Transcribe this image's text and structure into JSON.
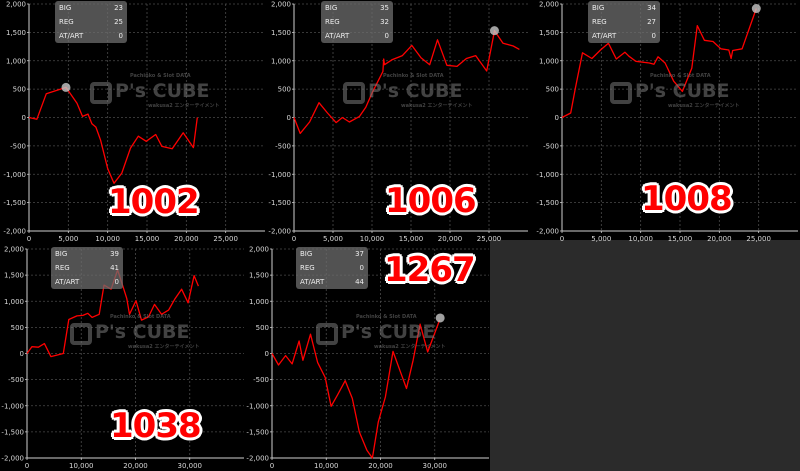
{
  "colors": {
    "line": "#ff0000",
    "grid": "#4a4a4a",
    "axis": "#cfcfcf",
    "tick_text": "#d8d8d8",
    "marker": "#c8c8c8",
    "empty_panel": "#2b2b2b"
  },
  "watermark": {
    "logo": "P's CUBE",
    "tagline": "Pachinko & Slot DATA",
    "sub": "wakusa2 エンターテイメント"
  },
  "chart_data": [
    {
      "type": "line",
      "label": "1002",
      "stats": {
        "big_label": "BIG",
        "big": "23",
        "reg_label": "REG",
        "reg": "25",
        "art_label": "AT/ART",
        "art": "0"
      },
      "xlim": [
        0,
        30000
      ],
      "ylim": [
        -2000,
        2000
      ],
      "xticks": [
        "0",
        "5,000",
        "10,000",
        "15,000",
        "20,000",
        "25,000"
      ],
      "xtick_values": [
        0,
        5000,
        10000,
        15000,
        20000,
        25000
      ],
      "yticks": [
        "2,000",
        "1,500",
        "1,000",
        "500",
        "0",
        "-500",
        "-1,000",
        "-1,500",
        "-2,000"
      ],
      "ytick_values": [
        2000,
        1500,
        1000,
        500,
        0,
        -500,
        -1000,
        -1500,
        -2000
      ],
      "grid": true,
      "marker": [
        4700,
        530
      ],
      "x": [
        0,
        1000,
        2200,
        4700,
        6100,
        6800,
        7500,
        8000,
        8500,
        9100,
        10000,
        10800,
        11800,
        12900,
        13900,
        14900,
        16100,
        16900,
        18200,
        19600,
        20900,
        21400
      ],
      "y": [
        0,
        -30,
        420,
        530,
        250,
        20,
        60,
        -110,
        -170,
        -400,
        -900,
        -1160,
        -980,
        -540,
        -330,
        -420,
        -300,
        -510,
        -550,
        -270,
        -530,
        0
      ]
    },
    {
      "type": "line",
      "label": "1006",
      "stats": {
        "big_label": "BIG",
        "big": "35",
        "reg_label": "REG",
        "reg": "32",
        "art_label": "AT/ART",
        "art": "0"
      },
      "xlim": [
        0,
        30000
      ],
      "ylim": [
        -2000,
        2000
      ],
      "xticks": [
        "0",
        "5,000",
        "10,000",
        "15,000",
        "20,000",
        "25,000"
      ],
      "xtick_values": [
        0,
        5000,
        10000,
        15000,
        20000,
        25000
      ],
      "yticks": [
        "2,000",
        "1,500",
        "1,000",
        "500",
        "0",
        "-500",
        "-1,000",
        "-1,500",
        "-2,000"
      ],
      "ytick_values": [
        2000,
        1500,
        1000,
        500,
        0,
        -500,
        -1000,
        -1500,
        -2000
      ],
      "grid": true,
      "marker": [
        25700,
        1530
      ],
      "x": [
        0,
        800,
        2000,
        3200,
        4300,
        5400,
        6200,
        7100,
        8400,
        9200,
        10100,
        11400,
        11500,
        11600,
        12600,
        13900,
        15100,
        16300,
        17400,
        18400,
        19600,
        20900,
        22100,
        23300,
        24700,
        25700,
        26800,
        28100,
        28900
      ],
      "y": [
        0,
        -280,
        -80,
        260,
        80,
        -90,
        0,
        -80,
        20,
        180,
        460,
        810,
        1030,
        930,
        1020,
        1090,
        1270,
        1050,
        930,
        1370,
        920,
        900,
        1040,
        1090,
        820,
        1530,
        1310,
        1260,
        1200
      ]
    },
    {
      "type": "line",
      "label": "1008",
      "stats": {
        "big_label": "BIG",
        "big": "34",
        "reg_label": "REG",
        "reg": "27",
        "art_label": "AT/ART",
        "art": "0"
      },
      "xlim": [
        0,
        30000
      ],
      "ylim": [
        -2000,
        2000
      ],
      "xticks": [
        "0",
        "5,000",
        "10,000",
        "15,000",
        "20,000",
        "25,000"
      ],
      "xtick_values": [
        0,
        5000,
        10000,
        15000,
        20000,
        25000
      ],
      "yticks": [
        "2,000",
        "1,500",
        "1,000",
        "500",
        "0",
        "-500",
        "-1,000",
        "-1,500",
        "-2,000"
      ],
      "ytick_values": [
        2000,
        1500,
        1000,
        500,
        0,
        -500,
        -1000,
        -1500,
        -2000
      ],
      "grid": true,
      "marker": [
        24700,
        1920
      ],
      "x": [
        0,
        1100,
        1700,
        2600,
        3800,
        4900,
        5900,
        6900,
        8000,
        8500,
        9400,
        11100,
        11700,
        12200,
        13100,
        14200,
        15300,
        16500,
        17200,
        18100,
        19200,
        20200,
        21200,
        21500,
        21700,
        22900,
        24700
      ],
      "y": [
        0,
        80,
        520,
        1140,
        1040,
        1190,
        1310,
        1030,
        1150,
        1080,
        990,
        960,
        940,
        1070,
        960,
        640,
        460,
        870,
        1620,
        1360,
        1340,
        1210,
        1190,
        1040,
        1180,
        1210,
        1920
      ]
    },
    {
      "type": "line",
      "label": "1038",
      "stats": {
        "big_label": "BIG",
        "big": "39",
        "reg_label": "REG",
        "reg": "41",
        "art_label": "AT/ART",
        "art": "0"
      },
      "xlim": [
        0,
        40000
      ],
      "ylim": [
        -2000,
        2000
      ],
      "xticks": [
        "0",
        "10,000",
        "20,000",
        "30,000"
      ],
      "xtick_values": [
        0,
        10000,
        20000,
        30000
      ],
      "yticks": [
        "2,000",
        "1,500",
        "1,000",
        "500",
        "0",
        "-500",
        "-1,000",
        "-1,500",
        "-2,000"
      ],
      "ytick_values": [
        2000,
        1500,
        1000,
        500,
        0,
        -500,
        -1000,
        -1500,
        -2000
      ],
      "grid": true,
      "marker": null,
      "x": [
        0,
        900,
        2100,
        3200,
        4400,
        6700,
        7700,
        9200,
        10300,
        11200,
        12000,
        13300,
        14200,
        15500,
        16700,
        17600,
        18400,
        18900,
        20100,
        21100,
        22400,
        23500,
        24800,
        26100,
        27300,
        28500,
        29700,
        30800,
        31600
      ],
      "y": [
        0,
        130,
        120,
        190,
        -60,
        0,
        650,
        720,
        730,
        770,
        690,
        750,
        1310,
        1230,
        1600,
        1310,
        1050,
        750,
        1010,
        640,
        700,
        940,
        750,
        830,
        1050,
        1230,
        970,
        1490,
        1290
      ]
    },
    {
      "type": "line",
      "label": "1267",
      "stats": {
        "big_label": "BIG",
        "big": "37",
        "reg_label": "REG",
        "reg": "0",
        "art_label": "AT/ART",
        "art": "44"
      },
      "xlim": [
        0,
        40000
      ],
      "ylim": [
        -2000,
        2000
      ],
      "xticks": [
        "0",
        "10,000",
        "20,000",
        "30,000"
      ],
      "xtick_values": [
        0,
        10000,
        20000,
        30000
      ],
      "yticks": [
        "2,000",
        "1,500",
        "1,000",
        "500",
        "0",
        "-500",
        "-1,000",
        "-1,500",
        "-2,000"
      ],
      "ytick_values": [
        2000,
        1500,
        1000,
        500,
        0,
        -500,
        -1000,
        -1500,
        -2000
      ],
      "grid": true,
      "marker": [
        31000,
        680
      ],
      "x": [
        0,
        1200,
        2500,
        3700,
        5000,
        5700,
        7100,
        8400,
        9800,
        10900,
        12100,
        13500,
        14800,
        16100,
        17500,
        18500,
        19600,
        20900,
        22300,
        23600,
        24800,
        26000,
        27300,
        28700,
        30900
      ],
      "y": [
        0,
        -220,
        -40,
        -200,
        240,
        -130,
        370,
        -170,
        -460,
        -1010,
        -790,
        -520,
        -860,
        -1500,
        -1850,
        -2000,
        -1310,
        -830,
        40,
        -330,
        -670,
        -130,
        560,
        30,
        640
      ]
    }
  ]
}
